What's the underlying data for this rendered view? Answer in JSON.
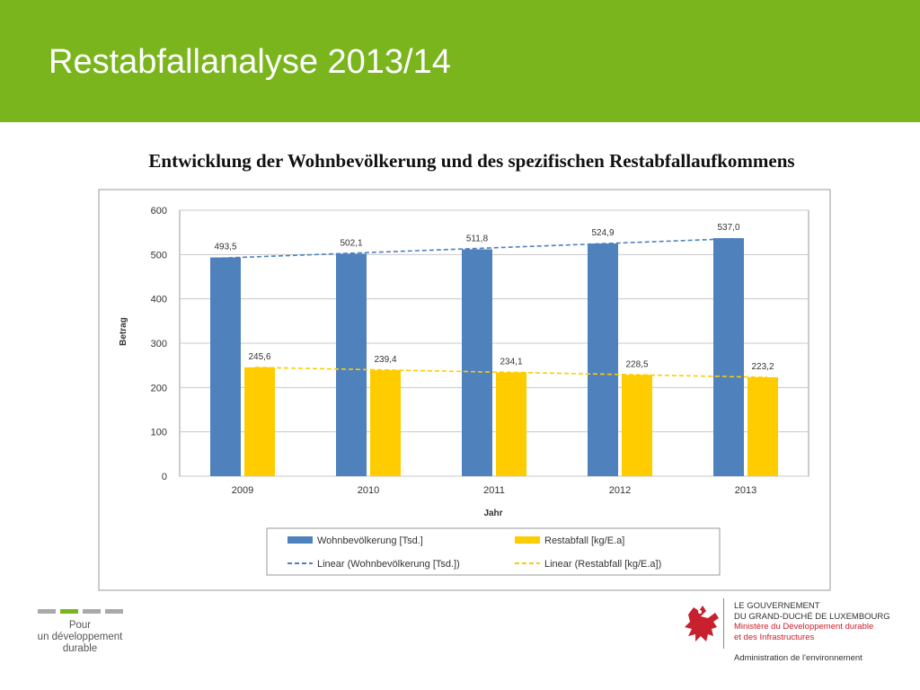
{
  "header": {
    "title": "Restabfallanalyse 2013/14"
  },
  "chart_data": {
    "type": "bar",
    "title": "Entwicklung der Wohnbevölkerung und des spezifischen Restabfallaufkommens",
    "xlabel": "Jahr",
    "ylabel": "Betrag",
    "ylim": [
      0,
      600
    ],
    "yticks": [
      "0",
      "100",
      "200",
      "300",
      "400",
      "500",
      "600"
    ],
    "categories": [
      "2009",
      "2010",
      "2011",
      "2012",
      "2013"
    ],
    "grid": true,
    "legend_position": "bottom",
    "series": [
      {
        "name": "Wohnbevölkerung [Tsd.]",
        "values": [
          493.5,
          502.1,
          511.8,
          524.9,
          537.0
        ],
        "labels": [
          "493,5",
          "502,1",
          "511,8",
          "524,9",
          "537,0"
        ],
        "color": "#4f81bd"
      },
      {
        "name": "Restabfall [kg/E.a]",
        "values": [
          245.6,
          239.4,
          234.1,
          228.5,
          223.2
        ],
        "labels": [
          "245,6",
          "239,4",
          "234,1",
          "228,5",
          "223,2"
        ],
        "color": "#ffcc00"
      }
    ],
    "trendlines": [
      {
        "name": "Linear (Wohnbevölkerung [Tsd.])",
        "series": 0,
        "style": "dashed",
        "color": "#4f81bd"
      },
      {
        "name": "Linear (Restabfall [kg/E.a])",
        "series": 1,
        "style": "dashed",
        "color": "#ffcc00"
      }
    ]
  },
  "footer": {
    "left_lines": [
      "Pour",
      "un développement",
      "durable"
    ],
    "gov_lines": [
      "LE GOUVERNEMENT",
      "DU GRAND-DUCHÉ DE LUXEMBOURG"
    ],
    "ministry_lines": [
      "Ministère du Développement durable",
      "et des Infrastructures"
    ],
    "admin": "Administration de l'environnement",
    "colors": {
      "green": "#7ab51d",
      "grey": "#a7a9ac",
      "red": "#c8202c"
    },
    "logo_icon": "red-lion-icon"
  }
}
